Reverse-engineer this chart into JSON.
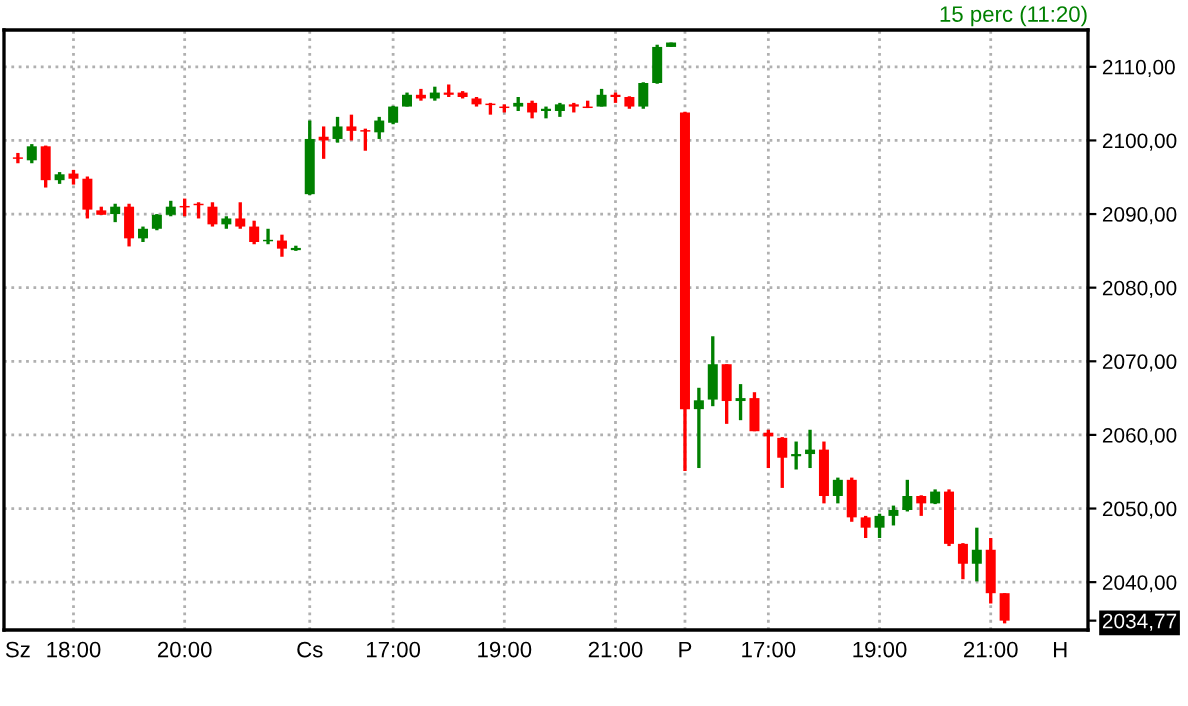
{
  "chart_data": {
    "type": "candlestick",
    "subtitle": "15 perc (11:20)",
    "categories": [
      "Sz",
      null,
      null,
      null,
      "18:00",
      null,
      null,
      null,
      null,
      null,
      null,
      null,
      "20:00",
      null,
      null,
      null,
      null,
      null,
      null,
      null,
      null,
      "Cs",
      null,
      null,
      null,
      null,
      null,
      "17:00",
      null,
      null,
      null,
      null,
      null,
      null,
      null,
      "19:00",
      null,
      null,
      null,
      null,
      null,
      null,
      null,
      "21:00",
      null,
      null,
      null,
      null,
      "P",
      null,
      null,
      null,
      null,
      null,
      "17:00",
      null,
      null,
      null,
      null,
      null,
      null,
      null,
      "19:00",
      null,
      null,
      null,
      null,
      null,
      null,
      null,
      "21:00",
      null,
      null,
      null,
      null,
      "H",
      null
    ],
    "ohlc": [
      [
        2097.7,
        2098.3,
        2096.9,
        2097.5
      ],
      [
        2097.3,
        2099.5,
        2096.9,
        2099.2
      ],
      [
        2099.2,
        2099.3,
        2093.6,
        2094.6
      ],
      [
        2094.6,
        2095.7,
        2094.1,
        2095.4
      ],
      [
        2095.5,
        2096.0,
        2094.0,
        2094.8
      ],
      [
        2094.8,
        2095.1,
        2089.4,
        2090.6
      ],
      [
        2090.5,
        2091.0,
        2089.9,
        2089.9
      ],
      [
        2090.0,
        2091.4,
        2088.9,
        2091.0
      ],
      [
        2091.0,
        2091.4,
        2085.6,
        2086.7
      ],
      [
        2086.7,
        2088.3,
        2086.2,
        2088.0
      ],
      [
        2088.0,
        2090.0,
        2087.8,
        2089.9
      ],
      [
        2089.9,
        2091.8,
        2089.7,
        2091.0
      ],
      [
        2091.1,
        2092.1,
        2089.7,
        2090.9
      ],
      [
        2091.4,
        2091.6,
        2089.4,
        2091.2
      ],
      [
        2091.0,
        2091.6,
        2088.3,
        2088.6
      ],
      [
        2088.6,
        2089.7,
        2088.0,
        2089.4
      ],
      [
        2089.4,
        2091.6,
        2088.0,
        2088.3
      ],
      [
        2088.3,
        2089.1,
        2085.9,
        2086.2
      ],
      [
        2086.3,
        2088.0,
        2085.9,
        2086.5
      ],
      [
        2086.4,
        2087.2,
        2084.2,
        2085.3
      ],
      [
        2085.1,
        2085.7,
        2085.0,
        2085.4
      ],
      [
        2092.7,
        2102.7,
        2092.6,
        2100.2
      ],
      [
        2100.5,
        2101.9,
        2097.5,
        2100.0
      ],
      [
        2100.2,
        2103.2,
        2099.7,
        2101.9
      ],
      [
        2101.9,
        2103.5,
        2100.0,
        2101.3
      ],
      [
        2101.4,
        2101.6,
        2098.6,
        2101.2
      ],
      [
        2101.1,
        2103.2,
        2100.2,
        2102.7
      ],
      [
        2102.4,
        2104.7,
        2102.2,
        2104.6
      ],
      [
        2104.6,
        2106.5,
        2104.6,
        2106.2
      ],
      [
        2106.2,
        2107.0,
        2105.4,
        2105.7
      ],
      [
        2105.7,
        2107.3,
        2105.4,
        2106.5
      ],
      [
        2106.5,
        2107.6,
        2105.9,
        2106.2
      ],
      [
        2106.5,
        2106.7,
        2105.7,
        2105.9
      ],
      [
        2105.7,
        2105.9,
        2104.6,
        2104.9
      ],
      [
        2105.0,
        2105.1,
        2103.5,
        2104.8
      ],
      [
        2104.6,
        2104.9,
        2103.8,
        2104.4
      ],
      [
        2104.6,
        2105.9,
        2104.0,
        2105.1
      ],
      [
        2105.1,
        2105.4,
        2103.0,
        2103.8
      ],
      [
        2104.0,
        2104.6,
        2103.0,
        2104.3
      ],
      [
        2104.0,
        2105.1,
        2103.2,
        2104.9
      ],
      [
        2104.9,
        2105.1,
        2103.8,
        2104.6
      ],
      [
        2104.6,
        2105.4,
        2104.4,
        2104.4
      ],
      [
        2104.6,
        2107.0,
        2104.6,
        2106.2
      ],
      [
        2106.2,
        2106.5,
        2105.1,
        2105.9
      ],
      [
        2105.9,
        2106.0,
        2104.3,
        2104.6
      ],
      [
        2104.6,
        2107.9,
        2104.3,
        2107.8
      ],
      [
        2107.8,
        2113.0,
        2107.7,
        2112.7
      ],
      [
        2112.7,
        2113.3,
        2112.7,
        2113.3
      ],
      [
        2103.8,
        2103.9,
        2055.1,
        2063.5
      ],
      [
        2063.5,
        2066.4,
        2055.5,
        2064.7
      ],
      [
        2064.8,
        2073.4,
        2063.9,
        2069.6
      ],
      [
        2069.6,
        2069.6,
        2061.5,
        2064.6
      ],
      [
        2064.6,
        2066.9,
        2062.0,
        2065.0
      ],
      [
        2065.0,
        2065.8,
        2060.5,
        2060.5
      ],
      [
        2060.3,
        2060.7,
        2055.5,
        2059.8
      ],
      [
        2059.6,
        2059.7,
        2052.8,
        2056.9
      ],
      [
        2057.1,
        2059.1,
        2055.3,
        2057.4
      ],
      [
        2057.4,
        2060.7,
        2055.5,
        2058.0
      ],
      [
        2058.0,
        2059.1,
        2050.7,
        2051.7
      ],
      [
        2051.7,
        2054.2,
        2050.7,
        2053.9
      ],
      [
        2053.9,
        2054.2,
        2048.2,
        2048.8
      ],
      [
        2048.8,
        2049.0,
        2046.0,
        2047.4
      ],
      [
        2047.4,
        2049.3,
        2046.0,
        2049.0
      ],
      [
        2049.0,
        2050.4,
        2047.7,
        2049.8
      ],
      [
        2049.8,
        2053.9,
        2049.6,
        2051.7
      ],
      [
        2051.7,
        2051.8,
        2049.0,
        2050.7
      ],
      [
        2050.7,
        2052.6,
        2050.6,
        2052.3
      ],
      [
        2052.3,
        2052.6,
        2044.9,
        2045.2
      ],
      [
        2045.2,
        2045.3,
        2040.4,
        2042.5
      ],
      [
        2042.5,
        2047.4,
        2040.1,
        2044.4
      ],
      [
        2044.4,
        2046.0,
        2037.1,
        2038.5
      ],
      [
        2038.5,
        2038.5,
        2034.4,
        2034.77
      ],
      null,
      null,
      null,
      null,
      null
    ],
    "colors": [
      "#ff0000",
      "#008000",
      "#ff0000",
      "#008000",
      "#ff0000",
      "#ff0000",
      "#ff0000",
      "#008000",
      "#ff0000",
      "#008000",
      "#008000",
      "#008000",
      "#ff0000",
      "#ff0000",
      "#ff0000",
      "#008000",
      "#ff0000",
      "#ff0000",
      "#008000",
      "#ff0000",
      "#008000",
      "#008000",
      "#ff0000",
      "#008000",
      "#ff0000",
      "#ff0000",
      "#008000",
      "#008000",
      "#008000",
      "#ff0000",
      "#008000",
      "#ff0000",
      "#ff0000",
      "#ff0000",
      "#ff0000",
      "#ff0000",
      "#008000",
      "#ff0000",
      "#008000",
      "#008000",
      "#ff0000",
      "#ff0000",
      "#008000",
      "#ff0000",
      "#ff0000",
      "#008000",
      "#008000",
      "#008000",
      "#ff0000",
      "#008000",
      "#008000",
      "#ff0000",
      "#008000",
      "#ff0000",
      "#ff0000",
      "#ff0000",
      "#008000",
      "#008000",
      "#ff0000",
      "#008000",
      "#ff0000",
      "#ff0000",
      "#008000",
      "#008000",
      "#008000",
      "#ff0000",
      "#008000",
      "#ff0000",
      "#ff0000",
      "#008000",
      "#ff0000",
      "#ff0000",
      null,
      null,
      null,
      null,
      null
    ],
    "ylim": [
      2033.5,
      2115
    ],
    "yticks": [
      {
        "value": 2034.77,
        "label": "2034,77"
      },
      {
        "value": 2040,
        "label": "2040,00"
      },
      {
        "value": 2050,
        "label": "2050,00"
      },
      {
        "value": 2060,
        "label": "2060,00"
      },
      {
        "value": 2070,
        "label": "2070,00"
      },
      {
        "value": 2080,
        "label": "2080,00"
      },
      {
        "value": 2090,
        "label": "2090,00"
      },
      {
        "value": 2100,
        "label": "2100,00"
      },
      {
        "value": 2110,
        "label": "2110,00"
      }
    ],
    "grid": true
  }
}
